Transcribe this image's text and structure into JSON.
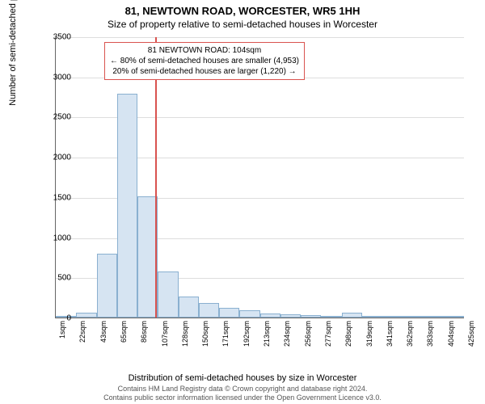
{
  "title_main": "81, NEWTOWN ROAD, WORCESTER, WR5 1HH",
  "title_sub": "Size of property relative to semi-detached houses in Worcester",
  "ylabel": "Number of semi-detached properties",
  "xlabel": "Distribution of semi-detached houses by size in Worcester",
  "chart": {
    "type": "histogram",
    "ylim": [
      0,
      3500
    ],
    "ytick_step": 500,
    "yticks": [
      0,
      500,
      1000,
      1500,
      2000,
      2500,
      3000,
      3500
    ],
    "xticks": [
      "1sqm",
      "22sqm",
      "43sqm",
      "65sqm",
      "86sqm",
      "107sqm",
      "128sqm",
      "150sqm",
      "171sqm",
      "192sqm",
      "213sqm",
      "234sqm",
      "256sqm",
      "277sqm",
      "298sqm",
      "319sqm",
      "341sqm",
      "362sqm",
      "383sqm",
      "404sqm",
      "425sqm"
    ],
    "values": [
      0,
      60,
      800,
      2790,
      1510,
      580,
      260,
      180,
      120,
      90,
      50,
      40,
      30,
      25,
      60,
      10,
      15,
      0,
      0,
      0
    ],
    "bar_fill": "#d6e4f2",
    "bar_stroke": "#8ab0d0",
    "grid_color": "#dddddd",
    "background": "#ffffff",
    "ref_line_value_sqm": 104,
    "ref_line_color": "#d9534f",
    "x_range_sqm": [
      1,
      425
    ]
  },
  "annotation": {
    "line1": "81 NEWTOWN ROAD: 104sqm",
    "line2": "← 80% of semi-detached houses are smaller (4,953)",
    "line3": "20% of semi-detached houses are larger (1,220) →",
    "border_color": "#d9534f"
  },
  "footer_line1": "Contains HM Land Registry data © Crown copyright and database right 2024.",
  "footer_line2": "Contains public sector information licensed under the Open Government Licence v3.0."
}
